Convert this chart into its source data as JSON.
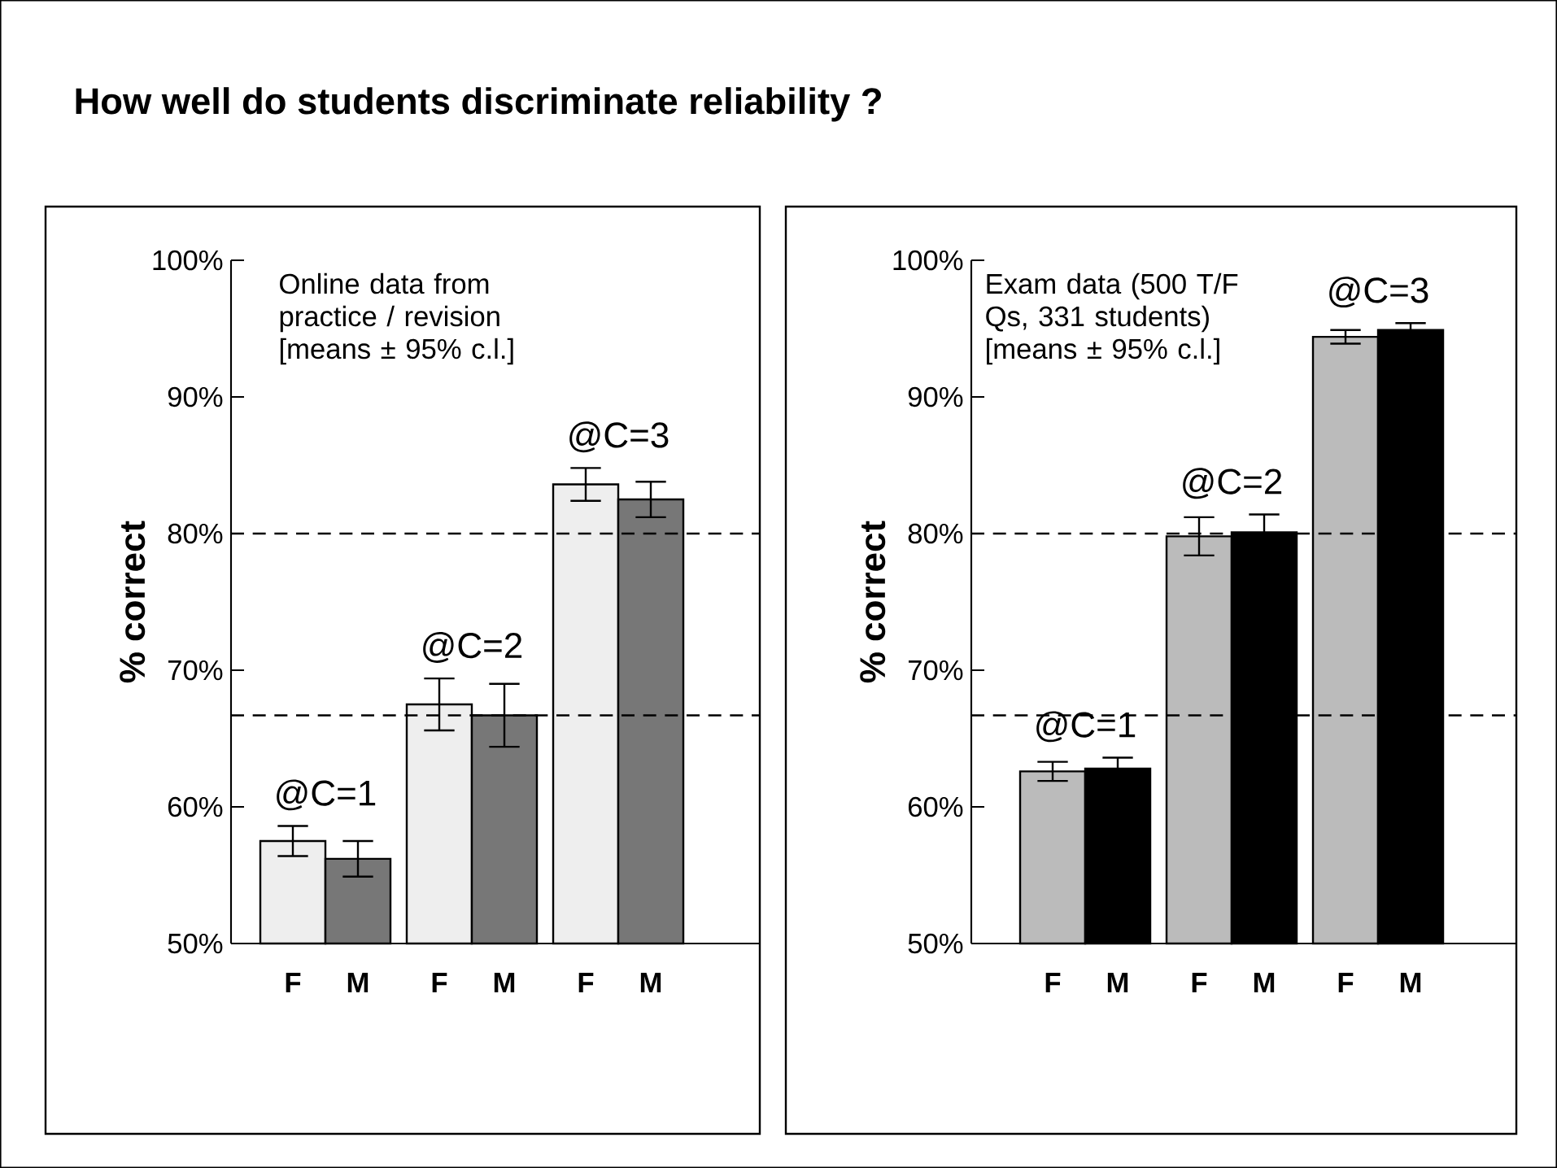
{
  "chart_data": [
    {
      "type": "bar",
      "title": "How well do students discriminate reliability ?",
      "ylabel": "% correct",
      "categories": [
        "F",
        "M",
        "F",
        "M",
        "F",
        "M"
      ],
      "values": [
        57.5,
        56.2,
        67.5,
        66.7,
        83.6,
        82.5
      ],
      "errors": [
        1.1,
        1.3,
        1.9,
        2.3,
        1.2,
        1.3
      ],
      "colors": [
        "#eeeeee",
        "#777777",
        "#eeeeee",
        "#777777",
        "#eeeeee",
        "#777777"
      ],
      "ylim": [
        50,
        100
      ],
      "yticks": [
        {
          "value": 50,
          "label": "50%"
        },
        {
          "value": 60,
          "label": "60%"
        },
        {
          "value": 70,
          "label": "70%"
        },
        {
          "value": 80,
          "label": "80%"
        },
        {
          "value": 90,
          "label": "90%"
        },
        {
          "value": 100,
          "label": "100%"
        }
      ],
      "ref_lines": [
        {
          "axis": "y",
          "value": 80,
          "color": "#000000",
          "line_style": "dashed"
        },
        {
          "axis": "y",
          "value": 66.7,
          "color": "#000000",
          "line_style": "dashed"
        }
      ],
      "annotations": [
        "Online data from practice / revision [means ± 95% c.l.]",
        "@C=1",
        "@C=2",
        "@C=3"
      ]
    },
    {
      "type": "bar",
      "ylabel": "% correct",
      "categories": [
        "F",
        "M",
        "F",
        "M",
        "F",
        "M"
      ],
      "values": [
        62.6,
        62.8,
        79.8,
        80.1,
        94.4,
        94.9
      ],
      "errors": [
        0.7,
        0.8,
        1.4,
        1.3,
        0.5,
        0.5
      ],
      "colors": [
        "#bbbbbb",
        "#000000",
        "#bbbbbb",
        "#000000",
        "#bbbbbb",
        "#000000"
      ],
      "ylim": [
        50,
        100
      ],
      "yticks": [
        {
          "value": 50,
          "label": "50%"
        },
        {
          "value": 60,
          "label": "60%"
        },
        {
          "value": 70,
          "label": "70%"
        },
        {
          "value": 80,
          "label": "80%"
        },
        {
          "value": 90,
          "label": "90%"
        },
        {
          "value": 100,
          "label": "100%"
        }
      ],
      "ref_lines": [
        {
          "axis": "y",
          "value": 80,
          "color": "#000000",
          "line_style": "dashed"
        },
        {
          "axis": "y",
          "value": 66.7,
          "color": "#000000",
          "line_style": "dashed"
        }
      ],
      "annotations": [
        "Exam data (500 T/F Qs, 331 students) [means ± 95% c.l.]",
        "@C=1",
        "@C=2",
        "@C=3"
      ]
    }
  ]
}
